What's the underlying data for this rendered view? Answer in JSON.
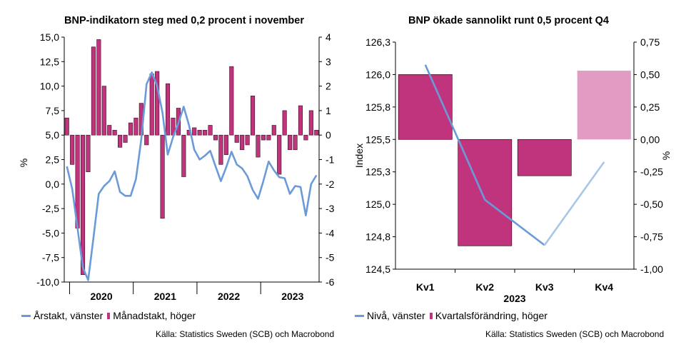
{
  "chart_data": [
    {
      "type": "bar+line",
      "title": "BNP-indikatorn steg med 0,2 procent i november",
      "ylabel_left": "%",
      "ylabel_right": "",
      "ylim_left": [
        -10,
        15
      ],
      "ylim_right": [
        -6,
        4
      ],
      "yticks_left": [
        "15,0",
        "12,5",
        "10,0",
        "7,5",
        "5,0",
        "2,5",
        "0,0",
        "-2,5",
        "-5,0",
        "-7,5",
        "-10,0"
      ],
      "yticks_right": [
        "4",
        "3",
        "2",
        "1",
        "0",
        "-1",
        "-2",
        "-3",
        "-4",
        "-5",
        "-6"
      ],
      "x_categories": [
        "2020",
        "2021",
        "2022",
        "2023"
      ],
      "x_range": [
        "2019-12",
        "2023-11"
      ],
      "grid": false,
      "legend_position": "bottom",
      "series": [
        {
          "name": "Månadstakt, höger",
          "kind": "bar",
          "axis": "right",
          "color": "#c0347e",
          "x": [
            "2019-12",
            "2020-01",
            "2020-02",
            "2020-03",
            "2020-04",
            "2020-05",
            "2020-06",
            "2020-07",
            "2020-08",
            "2020-09",
            "2020-10",
            "2020-11",
            "2020-12",
            "2021-01",
            "2021-02",
            "2021-03",
            "2021-04",
            "2021-05",
            "2021-06",
            "2021-07",
            "2021-08",
            "2021-09",
            "2021-10",
            "2021-11",
            "2021-12",
            "2022-01",
            "2022-02",
            "2022-03",
            "2022-04",
            "2022-05",
            "2022-06",
            "2022-07",
            "2022-08",
            "2022-09",
            "2022-10",
            "2022-11",
            "2022-12",
            "2023-01",
            "2023-02",
            "2023-03",
            "2023-04",
            "2023-05",
            "2023-06",
            "2023-07",
            "2023-08",
            "2023-09",
            "2023-10",
            "2023-11"
          ],
          "values": [
            0.7,
            -1.2,
            -3.8,
            -5.7,
            -1.5,
            3.6,
            3.9,
            2.0,
            0.4,
            0.2,
            -0.5,
            -0.3,
            0.5,
            0.7,
            1.3,
            -0.4,
            2.5,
            2.6,
            -3.4,
            2.1,
            0.7,
            1.1,
            -1.7,
            0.2,
            0.3,
            0.2,
            0.2,
            0.4,
            -0.2,
            -1.2,
            -0.8,
            2.8,
            -0.3,
            -0.6,
            -0.4,
            1.6,
            -0.9,
            -0.2,
            -0.2,
            0.4,
            -1.6,
            1.0,
            -0.6,
            -0.6,
            1.2,
            -0.2,
            1.0,
            0.2
          ]
        },
        {
          "name": "Årstakt, vänster",
          "kind": "line",
          "axis": "left",
          "color": "#6a9bd8",
          "x": [
            "2019-12",
            "2020-01",
            "2020-02",
            "2020-03",
            "2020-04",
            "2020-05",
            "2020-06",
            "2020-07",
            "2020-08",
            "2020-09",
            "2020-10",
            "2020-11",
            "2020-12",
            "2021-01",
            "2021-02",
            "2021-03",
            "2021-04",
            "2021-05",
            "2021-06",
            "2021-07",
            "2021-08",
            "2021-09",
            "2021-10",
            "2021-11",
            "2021-12",
            "2022-01",
            "2022-02",
            "2022-03",
            "2022-04",
            "2022-05",
            "2022-06",
            "2022-07",
            "2022-08",
            "2022-09",
            "2022-10",
            "2022-11",
            "2022-12",
            "2023-01",
            "2023-02",
            "2023-03",
            "2023-04",
            "2023-05",
            "2023-06",
            "2023-07",
            "2023-08",
            "2023-09",
            "2023-10",
            "2023-11"
          ],
          "values": [
            1.8,
            -0.5,
            -4.5,
            -8.5,
            -9.8,
            -5.5,
            -1.0,
            -0.2,
            0.3,
            1.3,
            -0.8,
            -1.2,
            -1.2,
            0.5,
            4.5,
            10.2,
            11.4,
            10.0,
            7.3,
            3.0,
            4.8,
            6.2,
            7.9,
            6.0,
            3.5,
            2.5,
            2.9,
            3.4,
            1.8,
            0.3,
            1.7,
            3.3,
            2.0,
            1.6,
            0.8,
            -0.6,
            -1.5,
            0.3,
            2.3,
            1.4,
            0.7,
            0.6,
            -1.0,
            -0.2,
            -0.3,
            -3.2,
            0.0,
            0.9
          ]
        }
      ],
      "legend": [
        "Årstakt, vänster",
        "Månadstakt, höger"
      ],
      "source": "Källa: Statistics Sweden (SCB) och Macrobond"
    },
    {
      "type": "bar+line",
      "title": "BNP ökade sannolikt runt 0,5 procent Q4",
      "ylabel_left": "Index",
      "ylabel_right": "%",
      "ylim_left": [
        124.5,
        126.3
      ],
      "ylim_right": [
        -1.0,
        0.75
      ],
      "yticks_left": [
        "126,3",
        "126,0",
        "125,8",
        "125,5",
        "125,3",
        "125,0",
        "124,8",
        "124,5"
      ],
      "yticks_right": [
        "0,75",
        "0,50",
        "0,25",
        "0,00",
        "-0,25",
        "-0,50",
        "-0,75",
        "-1,00"
      ],
      "categories": [
        "Kv1",
        "Kv2",
        "Kv3",
        "Kv4"
      ],
      "xlabel": "2023",
      "grid": false,
      "legend_position": "bottom",
      "series": [
        {
          "name": "Kvartalsförändring, höger",
          "kind": "bar",
          "axis": "right",
          "color": "#c0347e",
          "forecast_color": "#e29cc3",
          "values": [
            0.5,
            -0.82,
            -0.28,
            0.53
          ],
          "forecast": [
            false,
            false,
            false,
            true
          ]
        },
        {
          "name": "Nivå, vänster",
          "kind": "line",
          "axis": "left",
          "color": "#6a9bd8",
          "forecast_color": "#a9c6e8",
          "values": [
            126.12,
            125.05,
            124.69,
            125.35
          ],
          "forecast": [
            false,
            false,
            false,
            true
          ]
        }
      ],
      "legend": [
        "Nivå, vänster",
        "Kvartalsförändring, höger"
      ],
      "source": "Källa: Statistics Sweden (SCB) och Macrobond"
    }
  ]
}
